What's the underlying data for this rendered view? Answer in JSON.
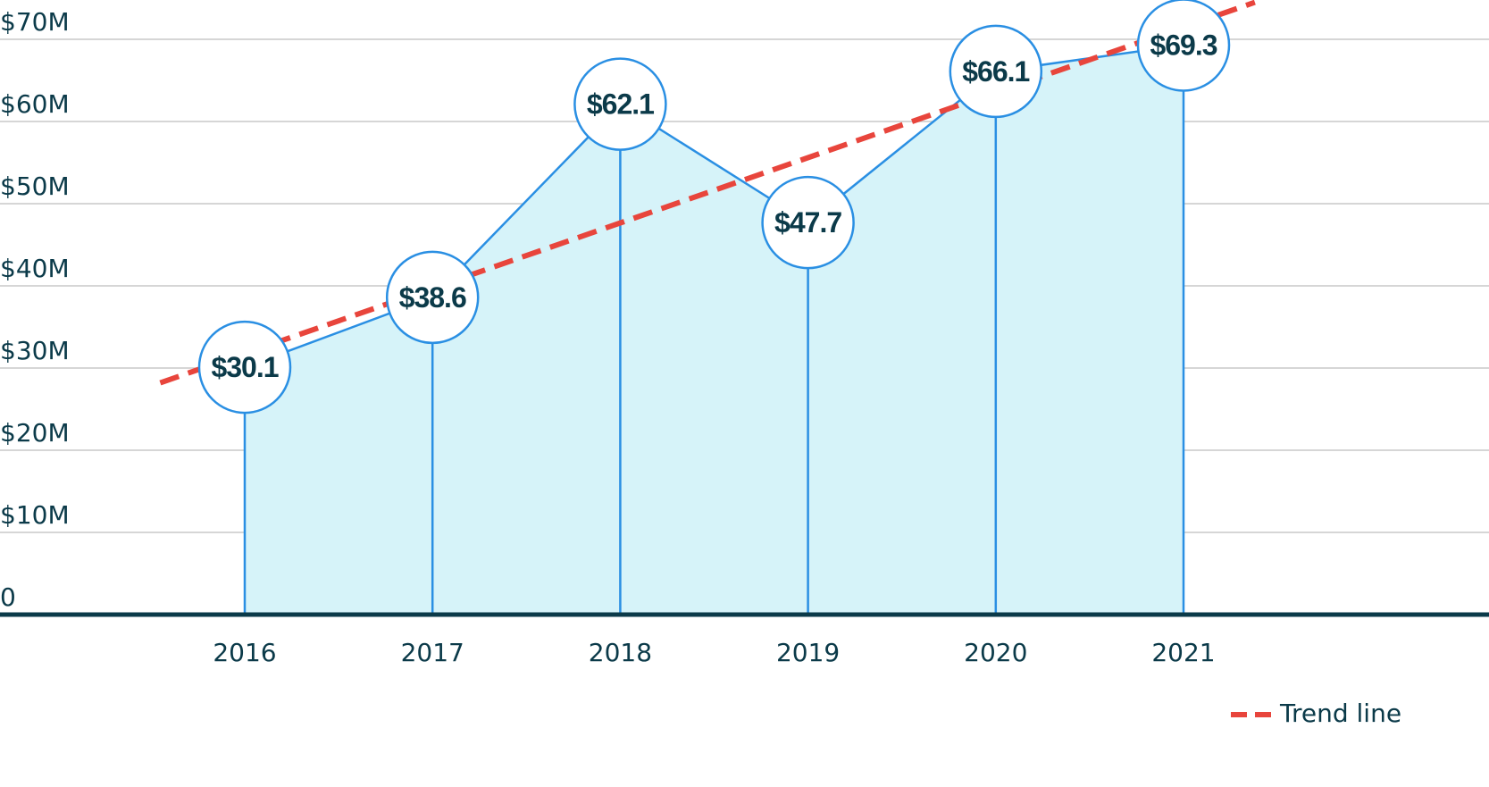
{
  "chart_data": {
    "type": "area",
    "categories": [
      "2016",
      "2017",
      "2018",
      "2019",
      "2020",
      "2021"
    ],
    "values": [
      30.1,
      38.6,
      62.1,
      47.7,
      66.1,
      69.3
    ],
    "data_labels": [
      "$30.1",
      "$38.6",
      "$62.1",
      "$47.7",
      "$66.1",
      "$69.3"
    ],
    "y_ticks": [
      {
        "value": 0,
        "label": "0"
      },
      {
        "value": 10,
        "label": "$10M"
      },
      {
        "value": 20,
        "label": "$20M"
      },
      {
        "value": 30,
        "label": "$30M"
      },
      {
        "value": 40,
        "label": "$40M"
      },
      {
        "value": 50,
        "label": "$50M"
      },
      {
        "value": 60,
        "label": "$60M"
      },
      {
        "value": 70,
        "label": "$70M"
      }
    ],
    "ylim": [
      0,
      70
    ],
    "grid": true,
    "trend_line": {
      "name": "Trend line",
      "start": [
        2015.55,
        28.2
      ],
      "end": [
        2021.38,
        74.5
      ]
    },
    "legend": {
      "position": "bottom-right",
      "label": "Trend line"
    },
    "title": "",
    "xlabel": "",
    "ylabel": ""
  },
  "colors": {
    "line": "#2a8fe3",
    "area": "#d6f3f9",
    "trend": "#e8453c",
    "axis": "#0b3a49",
    "grid": "#c9c9c9",
    "label_text": "#0b3a49"
  }
}
